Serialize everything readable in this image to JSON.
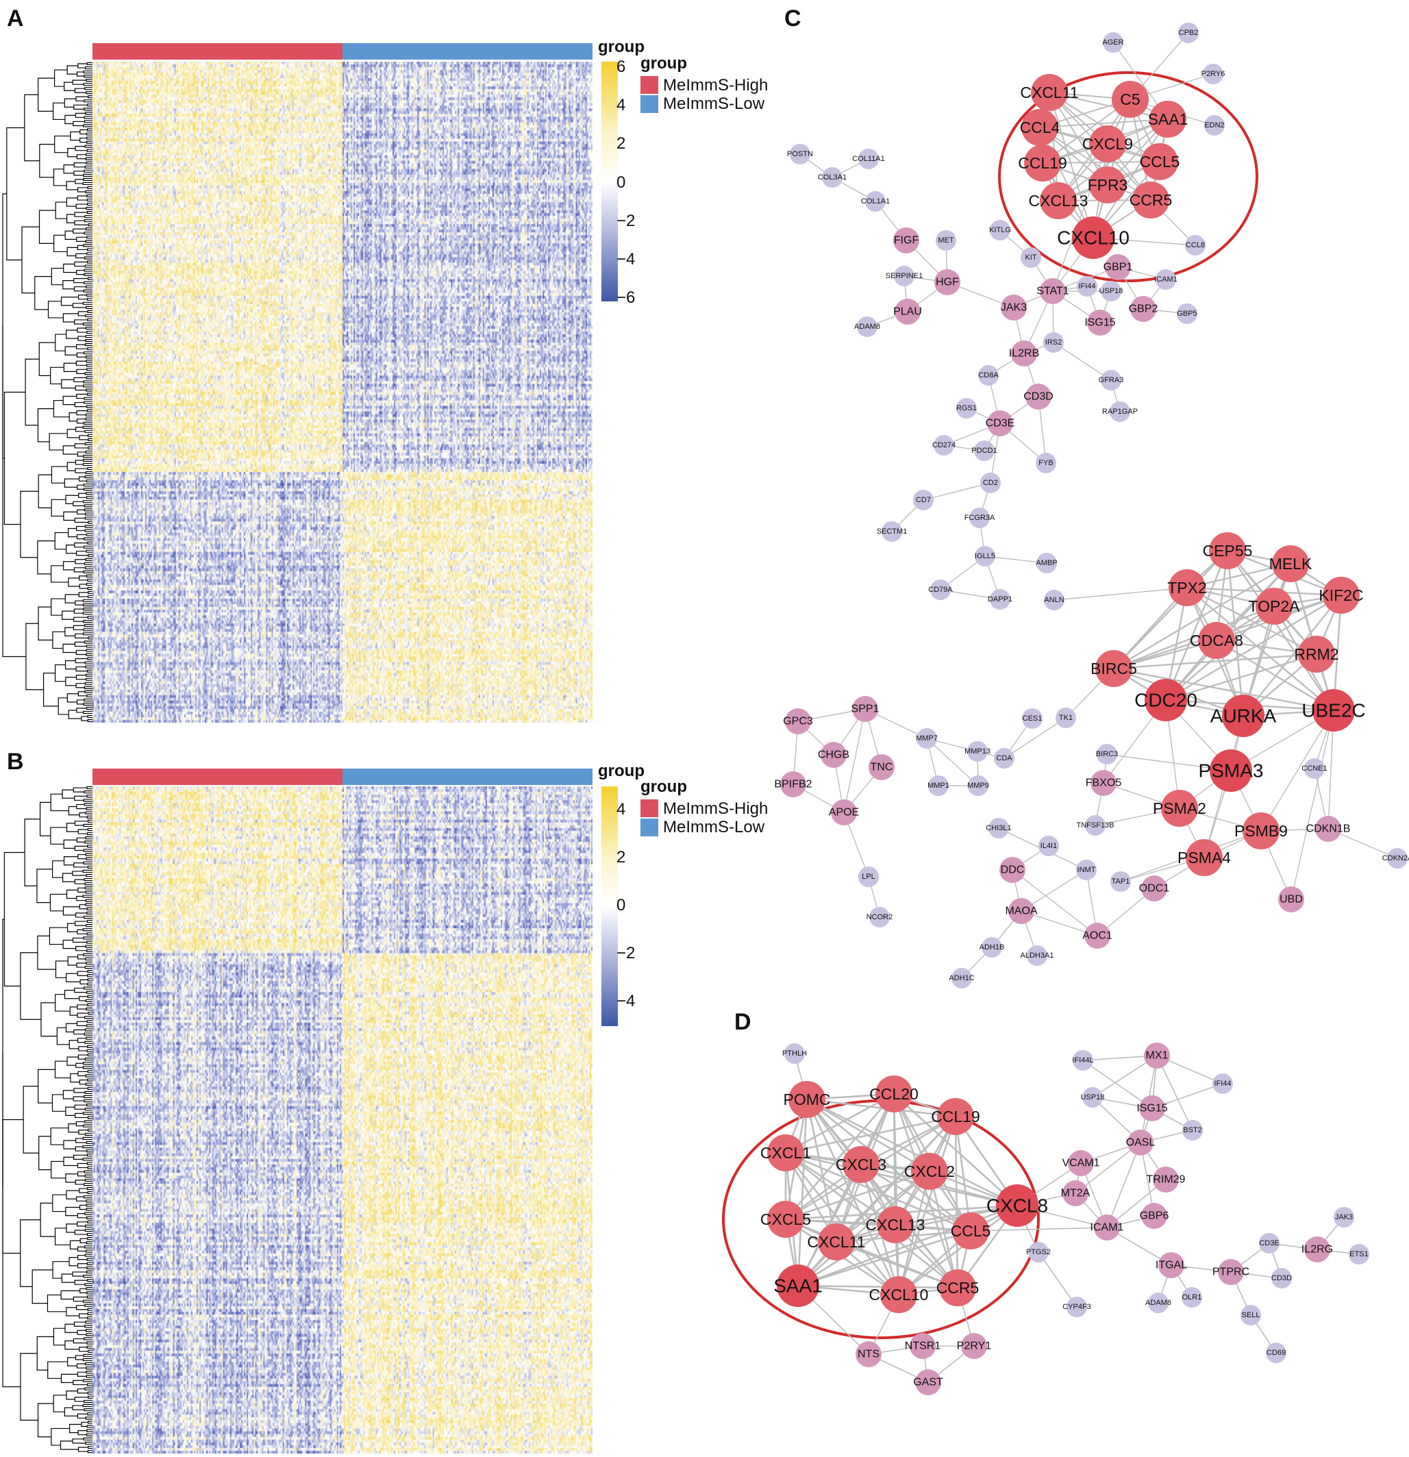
{
  "panels": {
    "A": {
      "letter": "A",
      "annotation_title": "group",
      "legend_title": "group",
      "groups": [
        {
          "label": "MeImmS-High",
          "color": "#dd4f5e"
        },
        {
          "label": "MeImmS-Low",
          "color": "#5d97d1"
        }
      ],
      "color_scale_ticks": [
        "6",
        "4",
        "2",
        "0",
        "−2",
        "−4",
        "−6"
      ],
      "heatmap_data": {
        "type": "heatmap",
        "value_range": [
          -6,
          6
        ],
        "high_samples_fraction": 0.5
      }
    },
    "B": {
      "letter": "B",
      "annotation_title": "group",
      "legend_title": "group",
      "groups": [
        {
          "label": "MeImmS-High",
          "color": "#dd4f5e"
        },
        {
          "label": "MeImmS-Low",
          "color": "#5d97d1"
        }
      ],
      "color_scale_ticks": [
        "4",
        "2",
        "0",
        "−2",
        "−4"
      ],
      "heatmap_data": {
        "type": "heatmap",
        "value_range": [
          -5,
          5
        ],
        "high_samples_fraction": 0.5
      }
    },
    "C": {
      "letter": "C"
    },
    "D": {
      "letter": "D"
    }
  },
  "colors": {
    "heat_low": "#3b57a6",
    "heat_mid": "#ffffff",
    "heat_high": "#f5cf2e",
    "hub_node": "#e4666f",
    "mid_node": "#d497b9",
    "low_node": "#c9c1e0",
    "edge": "#bdbdbd",
    "highlight_ring": "#d42a2a"
  }
}
